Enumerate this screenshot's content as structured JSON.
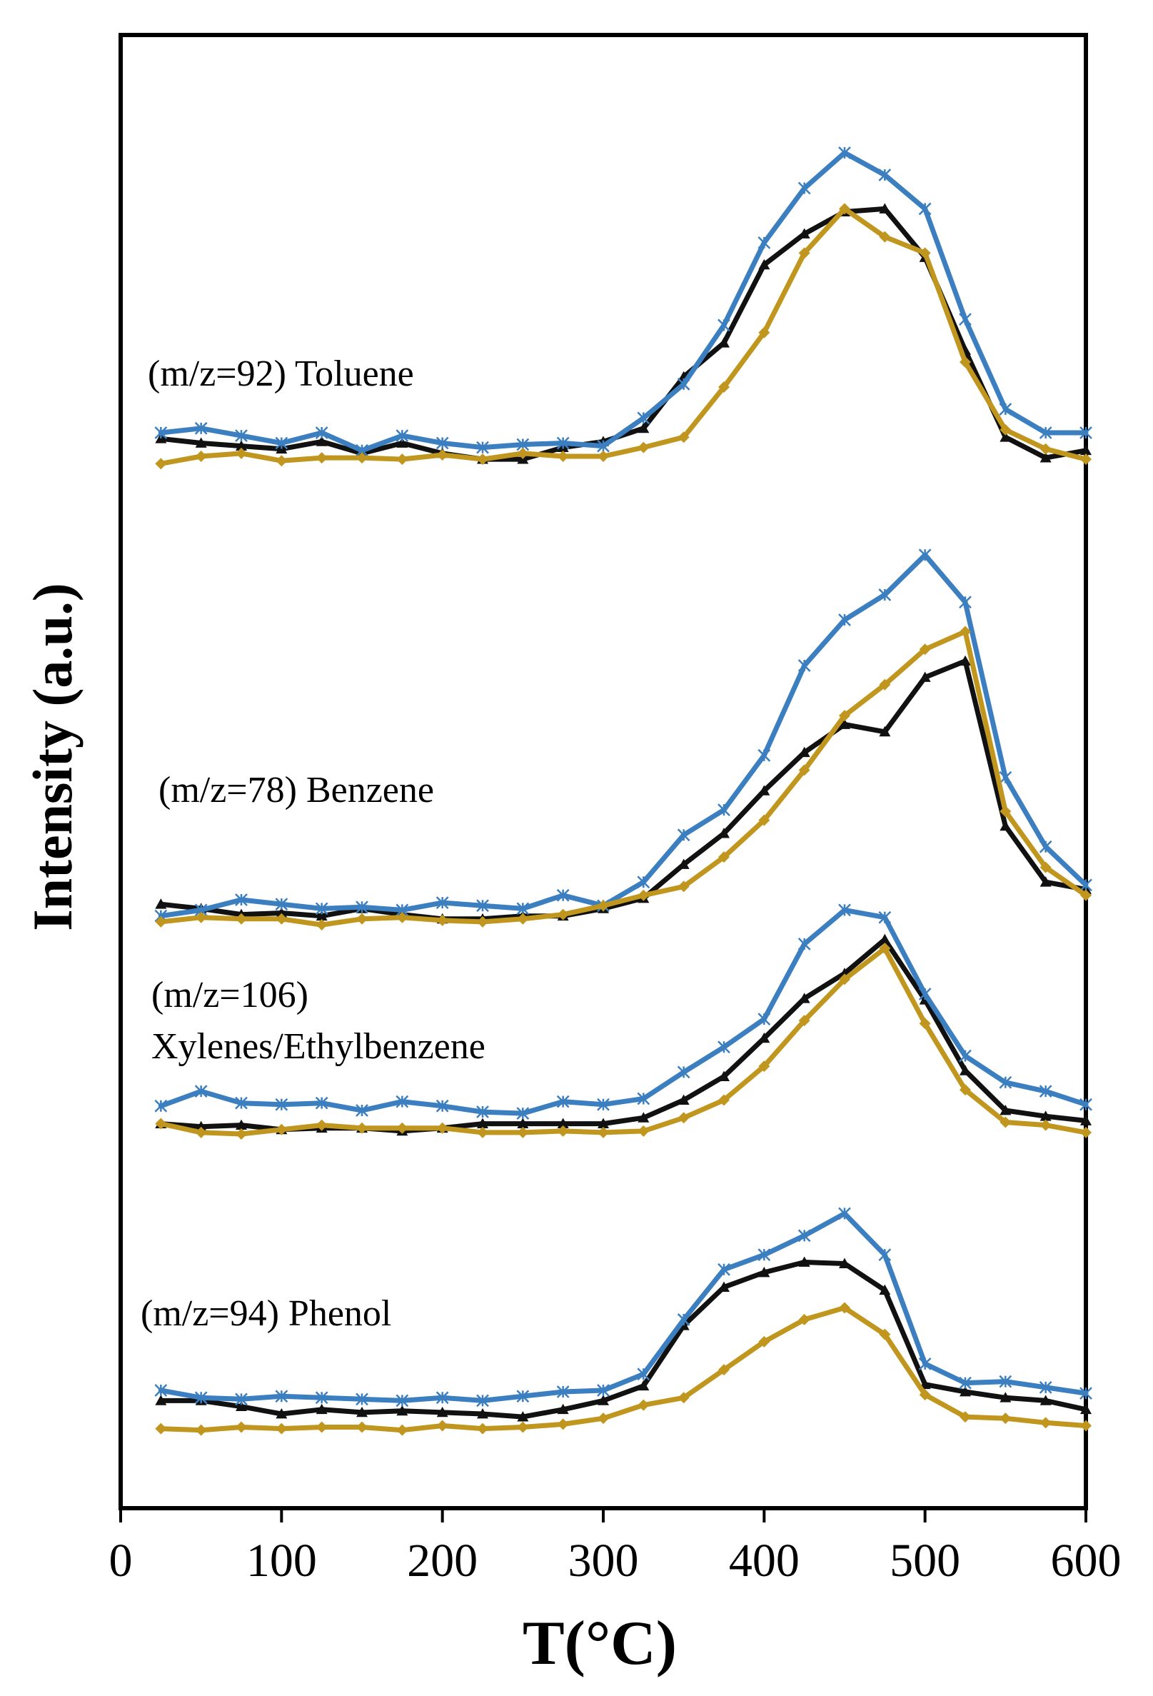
{
  "chart_data": {
    "type": "line",
    "xlabel": "T(°C)",
    "ylabel": "Intensity (a.u.)",
    "xlim": [
      0,
      600
    ],
    "xticks": [
      0,
      100,
      200,
      300,
      400,
      500,
      600
    ],
    "ylim": [
      0,
      100
    ],
    "y_ticks_shown": false,
    "grid": false,
    "legend": "none",
    "colors": {
      "black": "#111111",
      "blue": "#3b7fc0",
      "gold": "#c0961e"
    },
    "x": [
      25,
      50,
      75,
      100,
      125,
      150,
      175,
      200,
      225,
      250,
      275,
      300,
      325,
      350,
      375,
      400,
      425,
      450,
      475,
      500,
      525,
      550,
      575,
      600
    ],
    "groups": [
      {
        "label": "(m/z=92) Toluene",
        "label_lines": [
          "(m/z=92) Toluene"
        ],
        "series": [
          {
            "name": "black",
            "marker": "triangle",
            "values": [
              72.6,
              72.3,
              72.1,
              71.9,
              72.4,
              71.6,
              72.3,
              71.6,
              71.2,
              71.2,
              72.0,
              72.4,
              73.3,
              76.8,
              79.1,
              84.4,
              86.5,
              88.0,
              88.2,
              84.9,
              78.6,
              72.7,
              71.3,
              71.8
            ]
          },
          {
            "name": "blue",
            "marker": "star",
            "values": [
              73.0,
              73.3,
              72.8,
              72.3,
              73.0,
              71.8,
              72.8,
              72.3,
              72.0,
              72.2,
              72.3,
              72.1,
              74.0,
              76.3,
              80.3,
              85.9,
              89.6,
              92.0,
              90.5,
              88.2,
              80.7,
              74.6,
              73.0,
              73.0
            ]
          },
          {
            "name": "gold",
            "marker": "diamond",
            "values": [
              70.9,
              71.4,
              71.6,
              71.1,
              71.3,
              71.3,
              71.2,
              71.5,
              71.2,
              71.6,
              71.4,
              71.4,
              72.0,
              72.7,
              76.1,
              79.8,
              85.2,
              88.2,
              86.3,
              85.2,
              77.8,
              73.2,
              71.9,
              71.2
            ]
          }
        ]
      },
      {
        "label": "(m/z=78) Benzene",
        "label_lines": [
          "(m/z=78) Benzene"
        ],
        "series": [
          {
            "name": "black",
            "marker": "triangle",
            "values": [
              41.0,
              40.7,
              40.3,
              40.4,
              40.2,
              40.7,
              40.3,
              40.0,
              40.0,
              40.2,
              40.2,
              40.7,
              41.4,
              43.7,
              45.8,
              48.7,
              51.3,
              53.2,
              52.7,
              56.4,
              57.5,
              46.3,
              42.5,
              42.0
            ]
          },
          {
            "name": "blue",
            "marker": "star",
            "values": [
              40.2,
              40.6,
              41.3,
              41.0,
              40.7,
              40.8,
              40.6,
              41.1,
              40.9,
              40.7,
              41.6,
              40.9,
              42.5,
              45.7,
              47.4,
              51.1,
              57.2,
              60.3,
              62.0,
              64.7,
              61.5,
              49.6,
              44.9,
              42.3
            ]
          },
          {
            "name": "gold",
            "marker": "diamond",
            "values": [
              39.8,
              40.1,
              40.0,
              40.0,
              39.6,
              40.0,
              40.1,
              39.9,
              39.8,
              40.0,
              40.3,
              40.9,
              41.6,
              42.2,
              44.2,
              46.7,
              50.1,
              53.8,
              55.9,
              58.3,
              59.5,
              47.3,
              43.5,
              41.6
            ]
          }
        ]
      },
      {
        "label": "(m/z=106) Xylenes/Ethylbenzene",
        "label_lines": [
          "(m/z=106)",
          "Xylenes/Ethylbenzene"
        ],
        "series": [
          {
            "name": "black",
            "marker": "triangle",
            "values": [
              26.1,
              25.9,
              26.0,
              25.7,
              25.8,
              25.8,
              25.6,
              25.8,
              26.1,
              26.1,
              26.1,
              26.1,
              26.5,
              27.7,
              29.3,
              31.9,
              34.6,
              36.3,
              38.6,
              34.5,
              29.7,
              27.0,
              26.6,
              26.3
            ]
          },
          {
            "name": "blue",
            "marker": "star",
            "values": [
              27.3,
              28.3,
              27.5,
              27.4,
              27.5,
              27.0,
              27.6,
              27.3,
              26.9,
              26.8,
              27.6,
              27.4,
              27.8,
              29.6,
              31.3,
              33.2,
              38.3,
              40.6,
              40.1,
              34.9,
              30.7,
              28.9,
              28.3,
              27.4
            ]
          },
          {
            "name": "gold",
            "marker": "diamond",
            "values": [
              26.1,
              25.5,
              25.4,
              25.7,
              26.0,
              25.8,
              25.8,
              25.8,
              25.5,
              25.5,
              25.6,
              25.5,
              25.6,
              26.5,
              27.7,
              30.0,
              33.1,
              35.9,
              38.0,
              32.9,
              28.4,
              26.2,
              26.0,
              25.5
            ]
          }
        ]
      },
      {
        "label": "(m/z=94) Phenol",
        "label_lines": [
          "(m/z=94) Phenol"
        ],
        "series": [
          {
            "name": "black",
            "marker": "triangle",
            "values": [
              7.3,
              7.3,
              6.9,
              6.4,
              6.7,
              6.5,
              6.6,
              6.5,
              6.4,
              6.2,
              6.7,
              7.3,
              8.3,
              12.4,
              15.0,
              16.0,
              16.7,
              16.6,
              14.8,
              8.4,
              7.9,
              7.5,
              7.3,
              6.7
            ]
          },
          {
            "name": "blue",
            "marker": "star",
            "values": [
              8.0,
              7.5,
              7.4,
              7.6,
              7.5,
              7.4,
              7.3,
              7.5,
              7.3,
              7.6,
              7.9,
              8.0,
              9.1,
              12.8,
              16.2,
              17.2,
              18.5,
              20.0,
              17.2,
              9.8,
              8.5,
              8.6,
              8.2,
              7.8
            ]
          },
          {
            "name": "gold",
            "marker": "diamond",
            "values": [
              5.4,
              5.3,
              5.5,
              5.4,
              5.5,
              5.5,
              5.3,
              5.6,
              5.4,
              5.5,
              5.7,
              6.1,
              7.0,
              7.5,
              9.4,
              11.3,
              12.8,
              13.6,
              11.8,
              7.7,
              6.2,
              6.1,
              5.8,
              5.6
            ]
          }
        ]
      }
    ]
  }
}
